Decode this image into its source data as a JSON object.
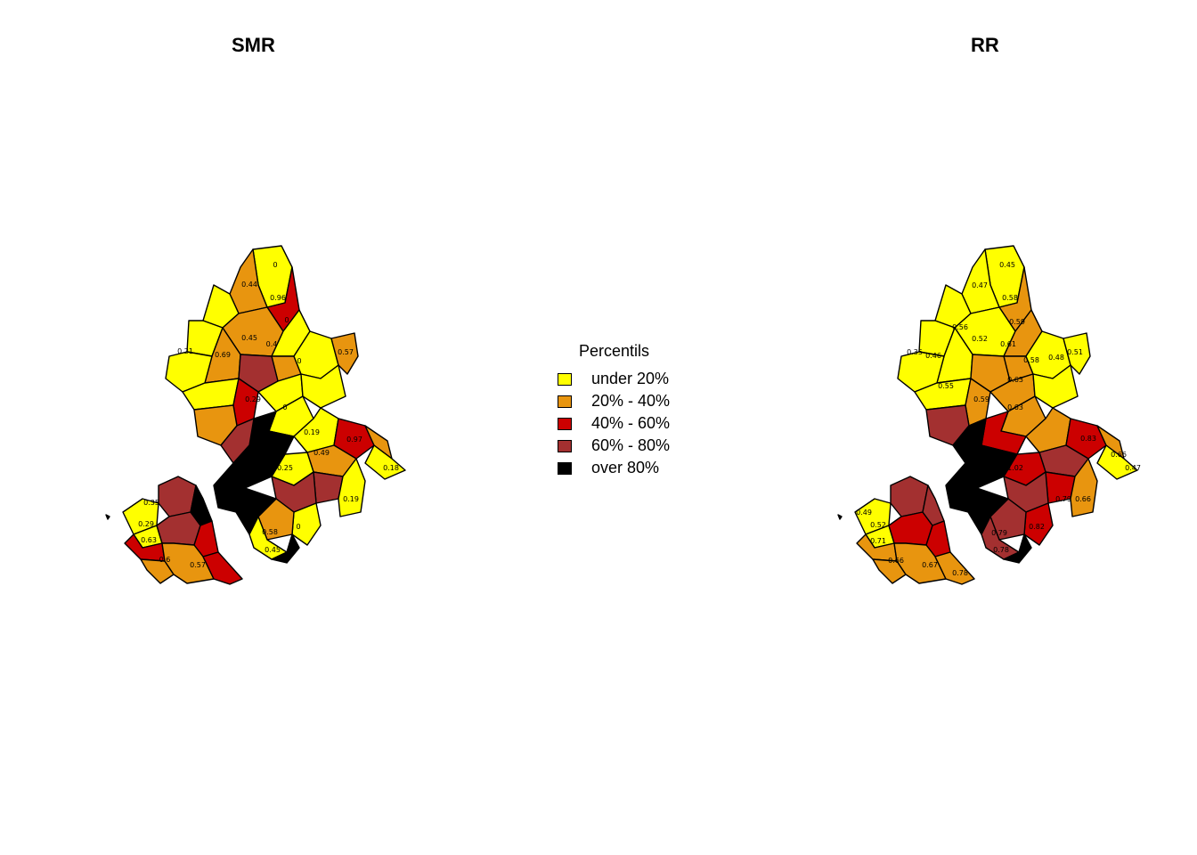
{
  "panels": {
    "smr": {
      "title": "SMR"
    },
    "rr": {
      "title": "RR"
    }
  },
  "legend": {
    "title": "Percentils",
    "items": [
      {
        "label": "under 20%",
        "color": "#ffff00"
      },
      {
        "label": "20% - 40%",
        "color": "#e8950f"
      },
      {
        "label": "40% - 60%",
        "color": "#cc0000"
      },
      {
        "label": "60% - 80%",
        "color": "#a33030"
      },
      {
        "label": "over 80%",
        "color": "#000000"
      }
    ]
  },
  "smr_labels": [
    "0",
    "0.44",
    "0.96",
    "0.45",
    "0.69",
    "0.4",
    "0",
    "0.57",
    "0.21",
    "0.29",
    "0",
    "0.19",
    "0.97",
    "0.49",
    "0.25",
    "0.18",
    "0.19",
    "0.35",
    "0.29",
    "0.63",
    "0.6",
    "0.57",
    "0.58",
    "0.45",
    "0",
    "0"
  ],
  "rr_labels": [
    "0.45",
    "0.47",
    "0.58",
    "0.59",
    "0.52",
    "0.61",
    "0.46",
    "0.58",
    "0.48",
    "0.51",
    "0.55",
    "0.63",
    "0.63",
    "0.59",
    "0.83",
    "1.02",
    "0.79",
    "0.66",
    "0.66",
    "0.47",
    "0.49",
    "0.52",
    "0.71",
    "0.66",
    "0.67",
    "0.78",
    "0.79",
    "0.82",
    "0.78",
    "0.35",
    "0.56"
  ]
}
